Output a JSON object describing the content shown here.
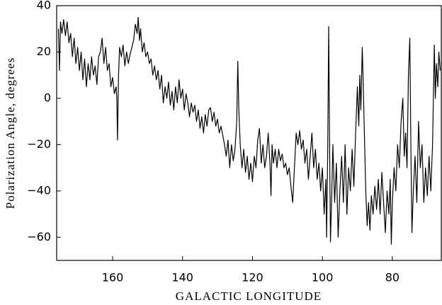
{
  "chart_data": {
    "type": "line",
    "ylabel": "Polarization Angle, degrees",
    "xlabel": "GALACTIC LONGITUDE",
    "color": "#000000",
    "xlim": [
      176,
      66
    ],
    "ylim": [
      -70,
      40
    ],
    "xticks": [
      160,
      140,
      120,
      100,
      80
    ],
    "yticks": [
      40,
      20,
      0,
      {
        "value": -20,
        "label": "−20"
      },
      {
        "value": -40,
        "label": "−40"
      },
      {
        "value": -60,
        "label": "−60"
      }
    ],
    "x": [
      175.5,
      175.2,
      174.9,
      174.5,
      174,
      173.5,
      173,
      172.5,
      172,
      171.5,
      171,
      170.5,
      170,
      169.5,
      169,
      168.5,
      168,
      167.5,
      167,
      166.5,
      166,
      165.5,
      165,
      164.5,
      164,
      163.5,
      163,
      162.5,
      162,
      161.5,
      161,
      160.5,
      160,
      159.5,
      159,
      158.8,
      158.6,
      158.3,
      158,
      157.5,
      157,
      156.5,
      156,
      155.5,
      155,
      154.5,
      154,
      153.5,
      153,
      152.7,
      152.3,
      152,
      151.5,
      151,
      150.5,
      150,
      149.5,
      149,
      148.5,
      148,
      147.5,
      147,
      146.5,
      146,
      145.5,
      145,
      144.5,
      144,
      143.5,
      143,
      142.5,
      142,
      141.5,
      141,
      140.5,
      140,
      139.5,
      139,
      138.5,
      138,
      137.5,
      137,
      136.5,
      136,
      135.5,
      135,
      134.5,
      134,
      133.5,
      133,
      132.5,
      132,
      131.5,
      131,
      130.5,
      130,
      129.5,
      129,
      128.5,
      128,
      127.5,
      127,
      126.5,
      126,
      125.5,
      125,
      124.5,
      124.2,
      123.9,
      123.5,
      123,
      122.5,
      122,
      121.5,
      121,
      120.5,
      120,
      119.5,
      119,
      118.5,
      118,
      117.5,
      117,
      116.5,
      116,
      115.5,
      115,
      114.7,
      114.4,
      114,
      113.5,
      113,
      112.5,
      112,
      111.5,
      111,
      110.5,
      110,
      109.5,
      109,
      108.5,
      108,
      107.5,
      107,
      106.5,
      106,
      105.5,
      105,
      104.5,
      104,
      103.5,
      103,
      102.5,
      102,
      101.5,
      101,
      100.5,
      100,
      99.5,
      99,
      98.8,
      98.5,
      98.2,
      98,
      97.7,
      97.3,
      97,
      96.5,
      96,
      95.5,
      95,
      94.5,
      94,
      93.5,
      93,
      92.5,
      92,
      91.5,
      91,
      90.5,
      90,
      89.6,
      89.3,
      89,
      88.6,
      88.3,
      88,
      87.6,
      87.2,
      86.8,
      86.4,
      86,
      85.5,
      85,
      84.5,
      84,
      83.5,
      83,
      82.5,
      82,
      81.5,
      81,
      80.6,
      80.3,
      80,
      79.5,
      79,
      78.5,
      78,
      77.5,
      77,
      76.6,
      76.2,
      75.8,
      75.4,
      75,
      74.7,
      74.4,
      74,
      73.5,
      73,
      72.5,
      72,
      71.5,
      71,
      70.5,
      70,
      69.5,
      69,
      68.5,
      68.2,
      68,
      67.7,
      67.4,
      67,
      66.7,
      66.3
    ],
    "values": [
      30,
      12,
      33,
      28,
      34,
      27,
      33,
      24,
      28,
      18,
      26,
      15,
      22,
      12,
      20,
      8,
      17,
      5,
      15,
      8,
      18,
      10,
      14,
      6,
      18,
      20,
      26,
      15,
      22,
      12,
      15,
      5,
      9,
      2,
      5,
      0,
      -18,
      10,
      22,
      18,
      23,
      14,
      20,
      15,
      19,
      22,
      25,
      32,
      28,
      35,
      25,
      30,
      20,
      24,
      18,
      20,
      15,
      17,
      10,
      14,
      8,
      12,
      4,
      10,
      -2,
      5,
      0,
      7,
      -3,
      3,
      -5,
      5,
      -2,
      8,
      0,
      4,
      -5,
      2,
      -2,
      -8,
      -2,
      -6,
      -3,
      -10,
      -5,
      -13,
      -8,
      -15,
      -7,
      -12,
      -5,
      -4,
      -10,
      -6,
      -12,
      -9,
      -15,
      -12,
      -16,
      -20,
      -25,
      -18,
      -30,
      -20,
      -27,
      -22,
      -10,
      16,
      -5,
      -20,
      -30,
      -22,
      -32,
      -25,
      -35,
      -28,
      -36,
      -25,
      -30,
      -18,
      -13,
      -28,
      -20,
      -30,
      -25,
      -15,
      -28,
      -42,
      -20,
      -28,
      -22,
      -30,
      -22,
      -27,
      -24,
      -30,
      -28,
      -33,
      -30,
      -38,
      -45,
      -30,
      -15,
      -20,
      -14,
      -22,
      -18,
      -28,
      -22,
      -35,
      -25,
      -15,
      -30,
      -22,
      -35,
      -28,
      -40,
      -30,
      -50,
      -35,
      -60,
      -25,
      31,
      -10,
      -62,
      -40,
      -20,
      -45,
      -28,
      -60,
      -40,
      -25,
      -45,
      -20,
      -50,
      -30,
      -40,
      -22,
      -38,
      -15,
      5,
      -12,
      10,
      -5,
      22,
      5,
      -15,
      -40,
      -55,
      -45,
      -57,
      -42,
      -50,
      -38,
      -48,
      -35,
      -50,
      -32,
      -45,
      -58,
      -40,
      -50,
      -35,
      -63,
      -45,
      -30,
      -40,
      -20,
      -30,
      -10,
      0,
      -25,
      -15,
      -30,
      10,
      26,
      -20,
      -58,
      -40,
      -25,
      -45,
      -10,
      -30,
      -20,
      -45,
      -30,
      -42,
      -25,
      -40,
      -20,
      5,
      23,
      0,
      15,
      5,
      20,
      12
    ]
  }
}
